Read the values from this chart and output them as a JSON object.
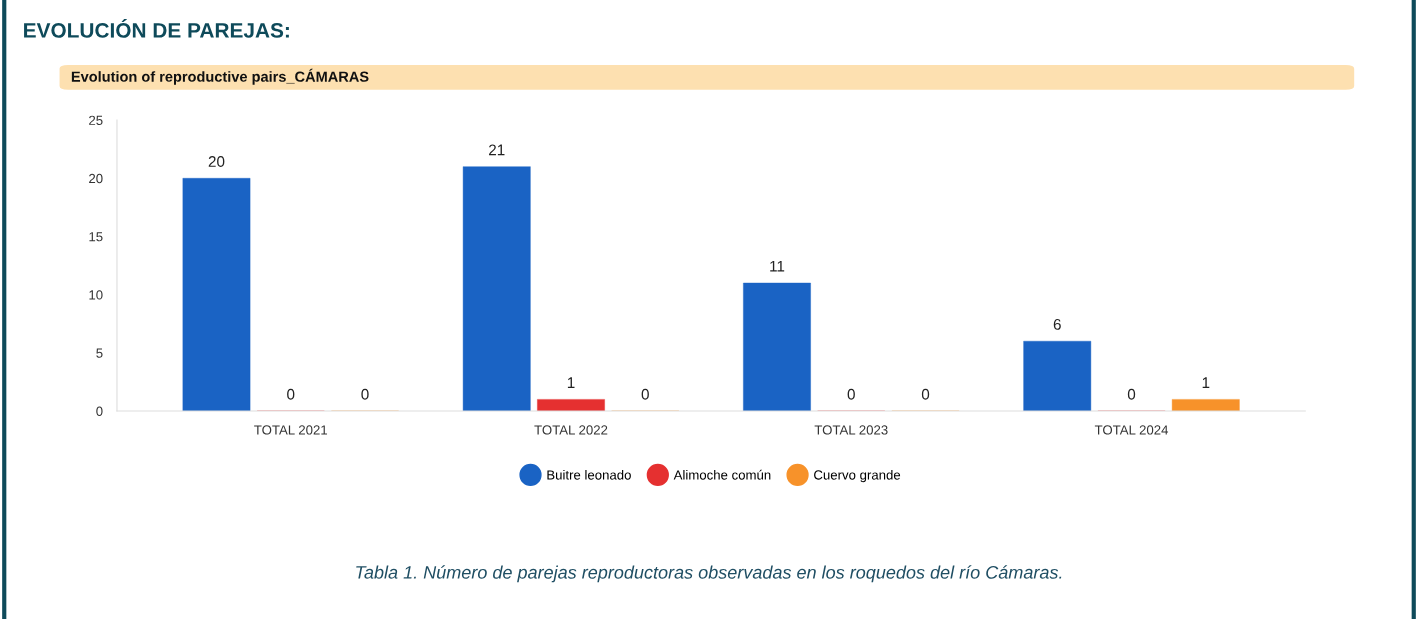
{
  "chart_data": {
    "type": "bar",
    "title": "EVOLUCIÓN DE PAREJAS:",
    "subtitle": "Evolution of reproductive pairs_CÁMARAS",
    "categories": [
      "TOTAL 2021",
      "TOTAL 2022",
      "TOTAL 2023",
      "TOTAL 2024"
    ],
    "series": [
      {
        "name": "Buitre leonado",
        "color": "#1a63c4",
        "values": [
          20,
          21,
          11,
          6
        ]
      },
      {
        "name": "Alimoche común",
        "color": "#e53030",
        "values": [
          0,
          1,
          0,
          0
        ]
      },
      {
        "name": "Cuervo grande",
        "color": "#f7922a",
        "values": [
          0,
          0,
          0,
          1
        ]
      }
    ],
    "ylim": [
      0,
      25
    ],
    "yticks": [
      0,
      5,
      10,
      15,
      20,
      25
    ],
    "grid": false,
    "legend": "bottom",
    "data_labels": true,
    "marker": "circle",
    "annotations": [
      "Tabla 1. Número de parejas reproductoras observadas en los roquedos del río Cámaras."
    ]
  }
}
